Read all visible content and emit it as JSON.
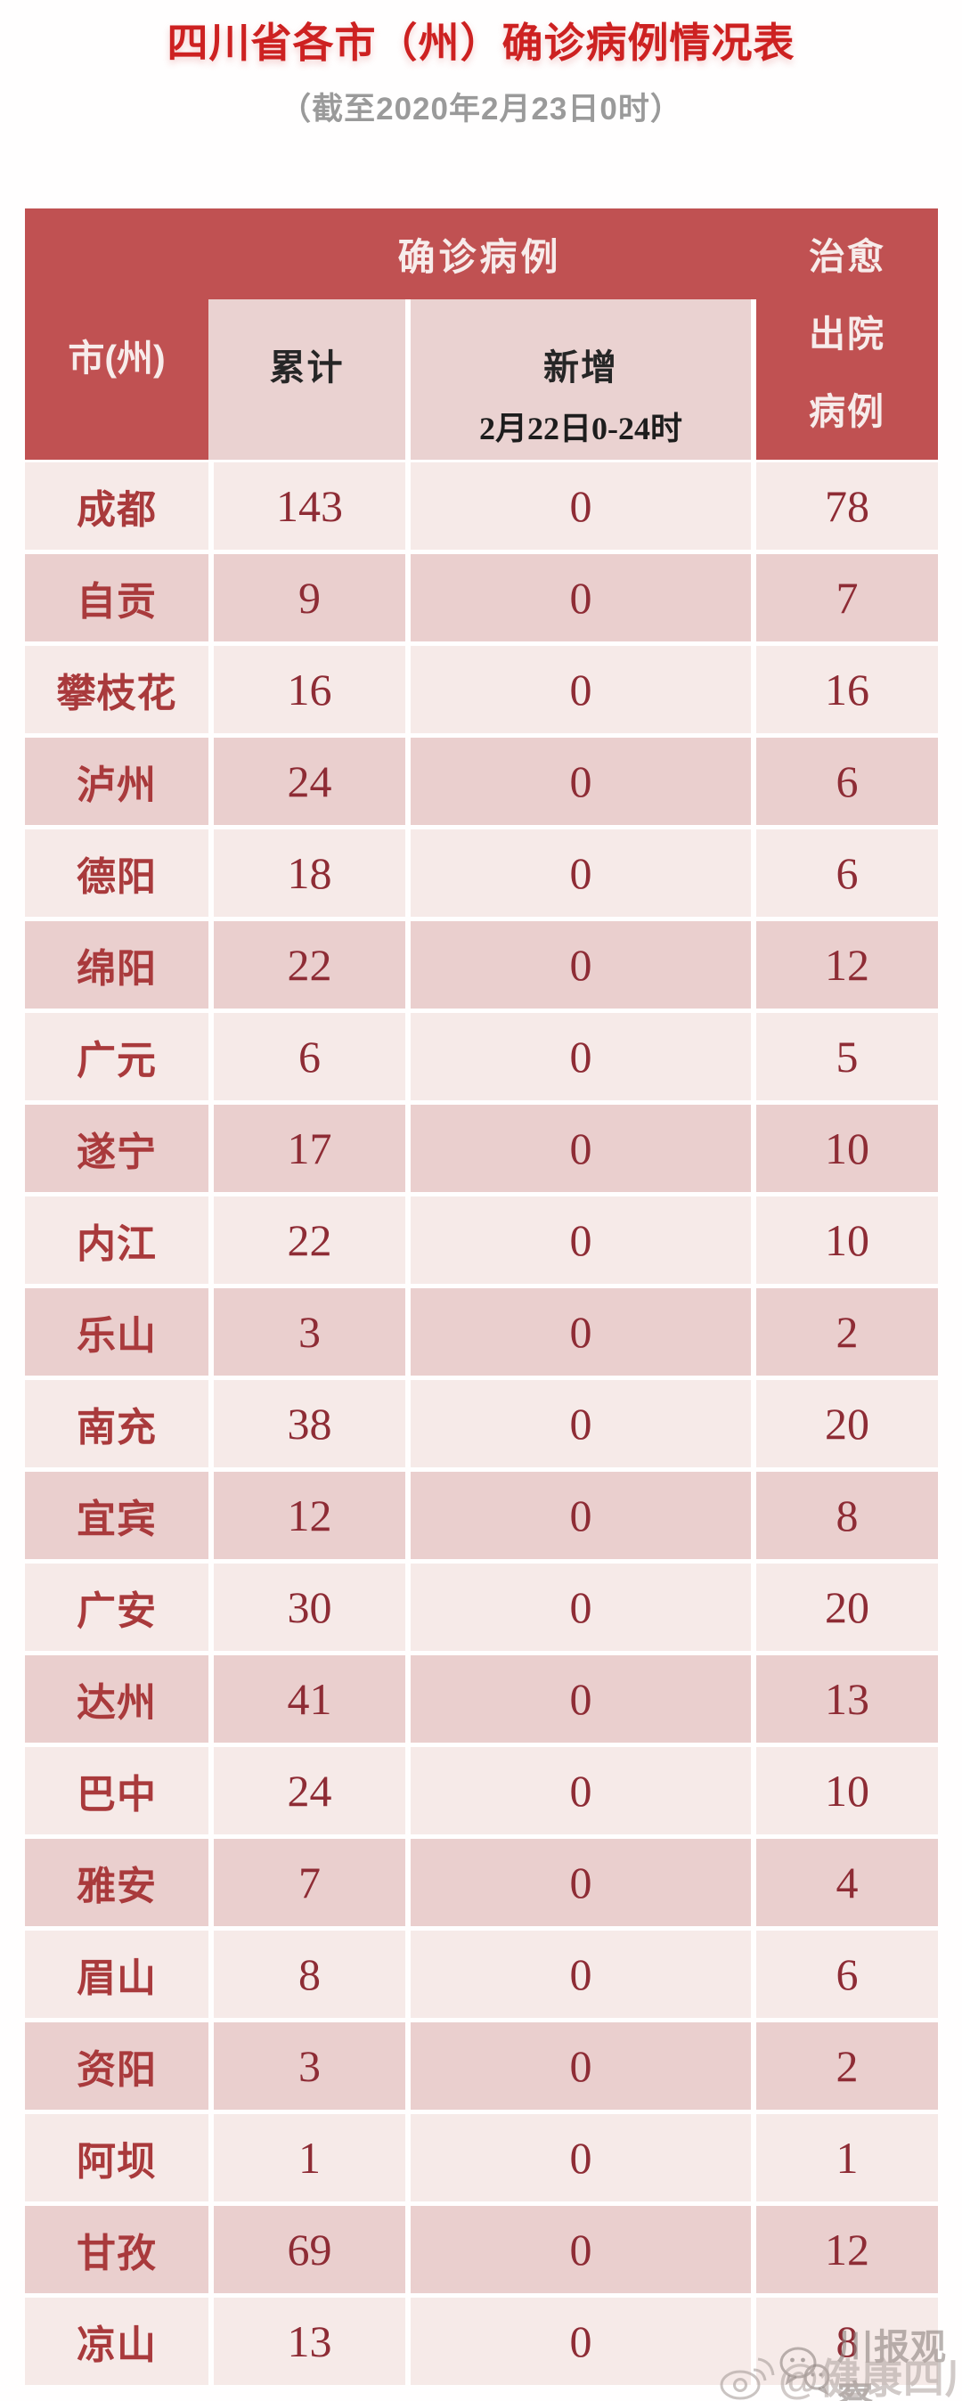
{
  "page_title": "四川省各市（州）确诊病例情况表",
  "page_subtitle": "（截至2020年2月23日0时）",
  "header": {
    "city": "市(州)",
    "confirmed_group": "确诊病例",
    "cumulative": "累计",
    "new_line1": "新增",
    "new_line2": "2月22日0-24时",
    "cured_lines": [
      "治愈",
      "出院",
      "病例"
    ]
  },
  "chart_data": {
    "type": "table",
    "title": "四川省各市（州）确诊病例情况表",
    "subtitle": "（截至2020年2月23日0时）",
    "columns": [
      "市(州)",
      "确诊病例-累计",
      "确诊病例-新增 2月22日0-24时",
      "治愈出院病例"
    ],
    "rows": [
      [
        "成都",
        143,
        0,
        78
      ],
      [
        "自贡",
        9,
        0,
        7
      ],
      [
        "攀枝花",
        16,
        0,
        16
      ],
      [
        "泸州",
        24,
        0,
        6
      ],
      [
        "德阳",
        18,
        0,
        6
      ],
      [
        "绵阳",
        22,
        0,
        12
      ],
      [
        "广元",
        6,
        0,
        5
      ],
      [
        "遂宁",
        17,
        0,
        10
      ],
      [
        "内江",
        22,
        0,
        10
      ],
      [
        "乐山",
        3,
        0,
        2
      ],
      [
        "南充",
        38,
        0,
        20
      ],
      [
        "宜宾",
        12,
        0,
        8
      ],
      [
        "广安",
        30,
        0,
        20
      ],
      [
        "达州",
        41,
        0,
        13
      ],
      [
        "巴中",
        24,
        0,
        10
      ],
      [
        "雅安",
        7,
        0,
        4
      ],
      [
        "眉山",
        8,
        0,
        6
      ],
      [
        "资阳",
        3,
        0,
        2
      ],
      [
        "阿坝",
        1,
        0,
        1
      ],
      [
        "甘孜",
        69,
        0,
        12
      ],
      [
        "凉山",
        13,
        0,
        8
      ]
    ]
  },
  "watermark": {
    "source1": "川报观察",
    "source2": "@健康四川官微",
    "icons": [
      "wechat-icon",
      "weibo-icon"
    ]
  },
  "colors": {
    "title_red": "#cd2121",
    "subtitle_gray": "#9a9a9a",
    "header_red": "#c05152",
    "subheader_pink": "#ead2d1",
    "row_light": "#f6eae8",
    "row_dark": "#eacfce",
    "city_text": "#a93a3c",
    "number_text": "#8e2c35",
    "header_text": "#f7eceb",
    "subheader_text": "#262626"
  }
}
